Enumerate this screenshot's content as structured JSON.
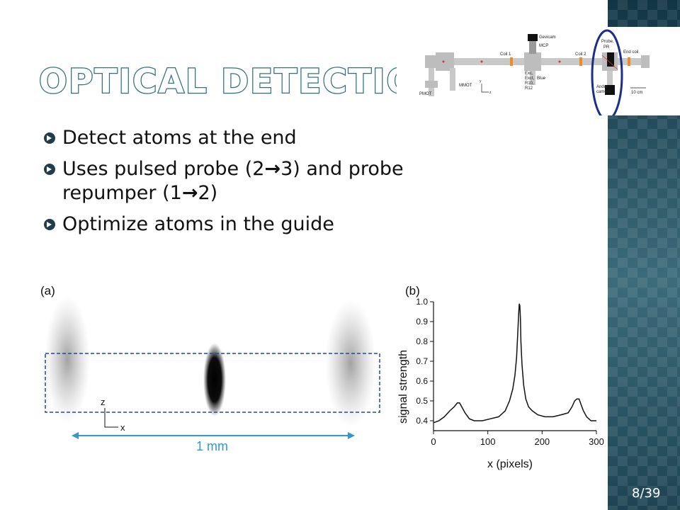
{
  "slide": {
    "title": "Optical Detection",
    "number": "8/39"
  },
  "bullets": [
    {
      "pre": "Detect atoms at the end",
      "arrow": "",
      "post": "",
      "line2": ""
    },
    {
      "pre": "Uses pulsed probe (2",
      "arrow": "→",
      "post": "3) and probe",
      "line2_pre": "repumper (1",
      "line2_arrow": "→",
      "line2_post": "2)"
    },
    {
      "pre": "Optimize atoms in the guide",
      "arrow": "",
      "post": "",
      "line2": ""
    }
  ],
  "apparatus": {
    "labels": {
      "gevicam": "Gevicam",
      "mcp": "MCP",
      "coil1": "Coil 1",
      "coil2": "Coil 2",
      "probe": "Probe,",
      "pr": "PR",
      "end_coil": "End coil",
      "exc": "Exc,",
      "exct": "Exct,",
      "r10": "R10,",
      "r12": "R12",
      "blue": "Blue",
      "pmot": "PMOT",
      "mmot": "MMOT",
      "andor": "Andor",
      "camera": "camera",
      "scale": "10 cm",
      "axis_y": "y",
      "axis_z": "z"
    }
  },
  "panel_a": {
    "label": "(a)",
    "axis_z": "z",
    "axis_x": "x",
    "scale": "1 mm"
  },
  "chart_data": {
    "type": "line",
    "panel_label": "(b)",
    "xlabel": "x (pixels)",
    "ylabel": "signal strength",
    "xlim": [
      0,
      300
    ],
    "ylim": [
      0.35,
      1.0
    ],
    "xticks": [
      0,
      100,
      200,
      300
    ],
    "yticks": [
      0.4,
      0.5,
      0.6,
      0.7,
      0.8,
      0.9,
      1.0
    ],
    "ytick_labels": [
      "0.4",
      "0.5",
      "0.6",
      "0.7",
      "0.8",
      "0.9",
      "1.0"
    ],
    "xtick_labels": [
      "0",
      "100",
      "200",
      "300"
    ],
    "series": [
      {
        "x": [
          0,
          10,
          20,
          30,
          38,
          44,
          48,
          52,
          58,
          66,
          75,
          90,
          105,
          120,
          132,
          140,
          146,
          150,
          153,
          155,
          157,
          158,
          159,
          160,
          161,
          163,
          166,
          170,
          175,
          182,
          192,
          205,
          220,
          235,
          248,
          255,
          260,
          264,
          268,
          272,
          276,
          282,
          290,
          300
        ],
        "y": [
          0.39,
          0.4,
          0.42,
          0.45,
          0.47,
          0.49,
          0.49,
          0.47,
          0.44,
          0.41,
          0.4,
          0.4,
          0.41,
          0.42,
          0.45,
          0.5,
          0.56,
          0.63,
          0.72,
          0.83,
          0.95,
          0.99,
          0.98,
          0.92,
          0.8,
          0.68,
          0.58,
          0.51,
          0.47,
          0.45,
          0.43,
          0.42,
          0.42,
          0.43,
          0.44,
          0.47,
          0.5,
          0.51,
          0.51,
          0.48,
          0.45,
          0.42,
          0.4,
          0.4
        ]
      }
    ]
  },
  "colors": {
    "title_outline": "#2f6f80",
    "highlight_ring": "#1a2e8a",
    "dashed_box": "#1f4a9a",
    "scale_arrow": "#3399cc",
    "bullet_icon": "#1f3d4a"
  }
}
